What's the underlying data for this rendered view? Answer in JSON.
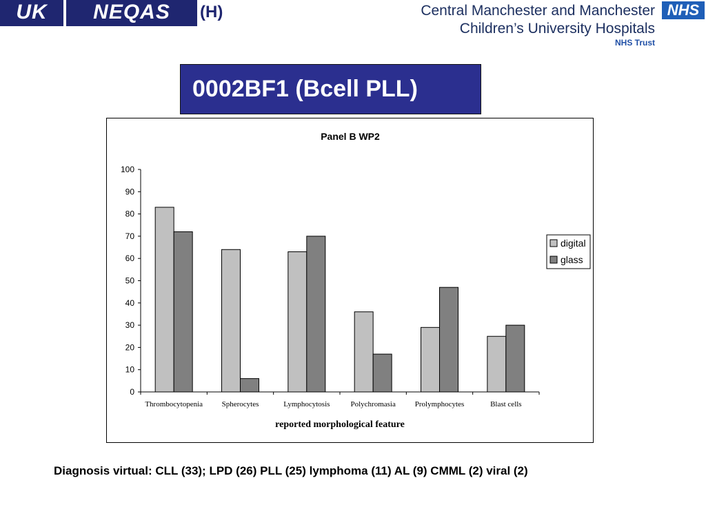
{
  "logo_left": {
    "uk": "UK",
    "neqas": "NEQAS",
    "suffix": "(H)"
  },
  "logo_right": {
    "line1": "Central Manchester and Manchester",
    "line2": "Children’s University Hospitals",
    "line3": "NHS Trust",
    "badge": "NHS"
  },
  "slide_title": "0002BF1 (Bcell PLL)",
  "chart_data": {
    "type": "bar",
    "title": "Panel B  WP2",
    "xlabel": "reported morphological feature",
    "ylabel": "",
    "categories": [
      "Thrombocytopenia",
      "Spherocytes",
      "Lymphocytosis",
      "Polychromasia",
      "Prolymphocytes",
      "Blast cells"
    ],
    "series": [
      {
        "name": "digital",
        "values": [
          83,
          64,
          63,
          36,
          29,
          25
        ],
        "color": "#c0c0c0"
      },
      {
        "name": "glass",
        "values": [
          72,
          6,
          70,
          17,
          47,
          30
        ],
        "color": "#808080"
      }
    ],
    "ylim": [
      0,
      100
    ],
    "yticks": [
      0,
      10,
      20,
      30,
      40,
      50,
      60,
      70,
      80,
      90,
      100
    ],
    "grid": false,
    "legend_position": "right"
  },
  "footer": {
    "diagnosis": "Diagnosis virtual: CLL (33); LPD (26) PLL (25) lymphoma (11) AL (9) CMML (2) viral (2)"
  }
}
